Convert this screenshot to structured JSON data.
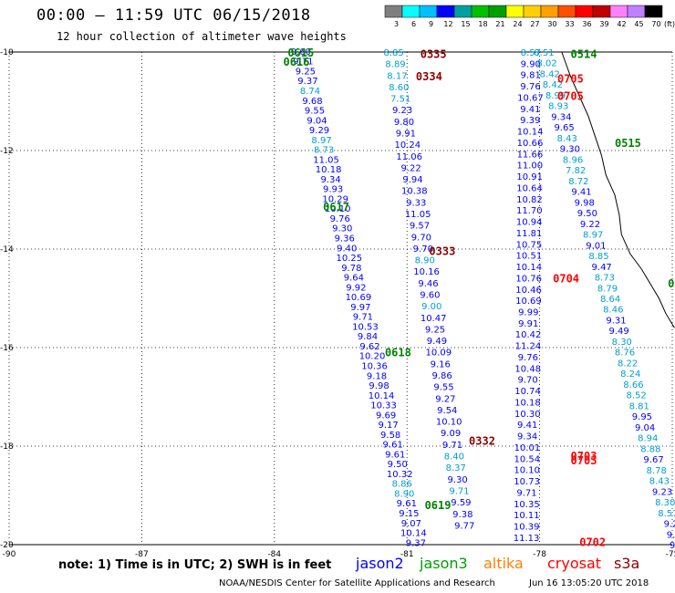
{
  "title": "00:00 – 11:59 UTC 06/15/2018",
  "subtitle": "12 hour collection of altimeter wave heights",
  "note": "note: 1) Time is in UTC; 2) SWH is in feet",
  "footer_left": "NOAA/NESDIS Center for Satellite Applications and Research",
  "footer_right": "Jun 16 13:05:20 UTC 2018",
  "scale": {
    "unit": "(ft)",
    "labels": [
      "3",
      "6",
      "9",
      "12",
      "15",
      "18",
      "21",
      "24",
      "27",
      "30",
      "33",
      "36",
      "39",
      "42",
      "45",
      "70"
    ],
    "colors": [
      "#7f7f7f",
      "#00ffff",
      "#00c0ff",
      "#0000ff",
      "#00a0a0",
      "#00c000",
      "#00a000",
      "#ffff00",
      "#ffd000",
      "#ffa000",
      "#ff5000",
      "#ff0000",
      "#c00000",
      "#ff80ff",
      "#c080ff",
      "#000000"
    ]
  },
  "satellites": [
    {
      "name": "jason2",
      "color": "#0000ff"
    },
    {
      "name": "jason3",
      "color": "#00a000"
    },
    {
      "name": "altika",
      "color": "#ff8000"
    },
    {
      "name": "cryosat",
      "color": "#ff0000"
    },
    {
      "name": "s3a",
      "color": "#8b0000"
    }
  ],
  "axes": {
    "lon_ticks": [
      -90,
      -87,
      -84,
      -81,
      -78,
      -75
    ],
    "lat_ticks": [
      -10,
      -12,
      -14,
      -16,
      -18,
      -20
    ],
    "lon_range": [
      -90,
      -75
    ],
    "lat_range": [
      -20,
      -10
    ]
  },
  "tracks": [
    {
      "id": "A",
      "from": [
        -83.4,
        -9.98
      ],
      "to": [
        -80.8,
        -19.95
      ],
      "values": [
        "9.60",
        "9.71",
        "9.25",
        "9.37",
        "8.74",
        "9.68",
        "9.55",
        "9.04",
        "9.29",
        "8.97",
        "8.73",
        "11.05",
        "10.18",
        "9.34",
        "9.93",
        "10.29",
        "10.10",
        "9.76",
        "9.30",
        "9.36",
        "9.40",
        "10.25",
        "9.78",
        "9.64",
        "9.92",
        "10.69",
        "9.97",
        "9.71",
        "10.53",
        "9.84",
        "9.62",
        "10.20",
        "10.36",
        "9.18",
        "9.98",
        "10.14",
        "10.33",
        "9.69",
        "9.17",
        "9.58",
        "9.61",
        "9.61",
        "9.50",
        "10.32",
        "8.86",
        "8.90",
        "9.61",
        "9.15",
        "9.07",
        "10.14",
        "9.37"
      ],
      "colors": [
        "#0000ff",
        "#0000ff",
        "#0000ff",
        "#0000ff",
        "#00a0d0",
        "#0000ff",
        "#0000ff",
        "#0000ff",
        "#0000ff",
        "#00a0d0",
        "#00a0d0",
        "#0000ff",
        "#0000ff",
        "#0000ff",
        "#0000ff",
        "#0000ff",
        "#0000ff",
        "#0000ff",
        "#0000ff",
        "#0000ff",
        "#0000ff",
        "#0000ff",
        "#0000ff",
        "#0000ff",
        "#0000ff",
        "#0000ff",
        "#0000ff",
        "#0000ff",
        "#0000ff",
        "#0000ff",
        "#0000ff",
        "#0000ff",
        "#0000ff",
        "#0000ff",
        "#0000ff",
        "#0000ff",
        "#0000ff",
        "#0000ff",
        "#0000ff",
        "#0000ff",
        "#0000ff",
        "#0000ff",
        "#0000ff",
        "#0000ff",
        "#00a0d0",
        "#00a0d0",
        "#0000ff",
        "#0000ff",
        "#0000ff",
        "#0000ff",
        "#0000ff"
      ]
    },
    {
      "id": "B",
      "from": [
        -81.3,
        -10.0
      ],
      "to": [
        -79.7,
        -19.6
      ],
      "values": [
        "8.85",
        "8.89",
        "8.17",
        "8.60",
        "7.51",
        "9.23",
        "9.80",
        "9.91",
        "10.24",
        "11.06",
        "9.22",
        "9.94",
        "10.38",
        "9.33",
        "11.05",
        "9.57",
        "9.70",
        "9.70",
        "8.90",
        "10.16",
        "9.46",
        "9.60",
        "9.00",
        "10.47",
        "9.25",
        "9.49",
        "10.09",
        "9.16",
        "9.86",
        "9.55",
        "9.27",
        "9.54",
        "10.10",
        "9.09",
        "9.71",
        "8.40",
        "8.37",
        "9.30",
        "9.71",
        "9.59",
        "9.38",
        "9.77"
      ],
      "colors": [
        "#00a0d0",
        "#00a0d0",
        "#00a0d0",
        "#00a0d0",
        "#00a0d0",
        "#0000ff",
        "#0000ff",
        "#0000ff",
        "#0000ff",
        "#0000ff",
        "#0000ff",
        "#0000ff",
        "#0000ff",
        "#0000ff",
        "#0000ff",
        "#0000ff",
        "#0000ff",
        "#0000ff",
        "#00a0d0",
        "#0000ff",
        "#0000ff",
        "#0000ff",
        "#00a0d0",
        "#0000ff",
        "#0000ff",
        "#0000ff",
        "#0000ff",
        "#0000ff",
        "#0000ff",
        "#0000ff",
        "#0000ff",
        "#0000ff",
        "#0000ff",
        "#0000ff",
        "#0000ff",
        "#00a0d0",
        "#00a0d0",
        "#0000ff",
        "#00a0d0",
        "#0000ff",
        "#0000ff",
        "#0000ff"
      ]
    },
    {
      "id": "C",
      "from": [
        -78.2,
        -10.0
      ],
      "to": [
        -78.3,
        -19.85
      ],
      "values": [
        "8.57",
        "9.90",
        "9.81",
        "9.76",
        "10.67",
        "9.41",
        "9.39",
        "10.14",
        "10.66",
        "11.66",
        "11.00",
        "10.91",
        "10.64",
        "10.82",
        "11.70",
        "10.94",
        "11.81",
        "10.75",
        "10.51",
        "10.14",
        "10.76",
        "10.46",
        "10.69",
        "9.99",
        "9.91",
        "10.42",
        "11.24",
        "9.76",
        "10.48",
        "9.70",
        "10.74",
        "10.18",
        "10.30",
        "9.41",
        "9.34",
        "10.01",
        "10.54",
        "10.10",
        "10.73",
        "9.71",
        "10.35",
        "10.11",
        "10.39",
        "11.13"
      ],
      "colors": [
        "#00a0d0",
        "#0000ff",
        "#0000ff",
        "#0000ff",
        "#0000ff",
        "#0000ff",
        "#0000ff",
        "#0000ff",
        "#0000ff",
        "#0000ff",
        "#0000ff",
        "#0000ff",
        "#0000ff",
        "#0000ff",
        "#0000ff",
        "#0000ff",
        "#0000ff",
        "#0000ff",
        "#0000ff",
        "#0000ff",
        "#0000ff",
        "#0000ff",
        "#0000ff",
        "#0000ff",
        "#0000ff",
        "#0000ff",
        "#0000ff",
        "#0000ff",
        "#0000ff",
        "#0000ff",
        "#0000ff",
        "#0000ff",
        "#0000ff",
        "#0000ff",
        "#0000ff",
        "#0000ff",
        "#0000ff",
        "#0000ff",
        "#0000ff",
        "#0000ff",
        "#0000ff",
        "#0000ff",
        "#0000ff",
        "#0000ff"
      ]
    },
    {
      "id": "D",
      "from": [
        -77.9,
        -10.0
      ],
      "to": [
        -74.9,
        -20.0
      ],
      "values": [
        "8.51",
        "8.02",
        "8.42",
        "8.42",
        "8.99",
        "8.93",
        "9.34",
        "9.65",
        "8.43",
        "9.30",
        "8.96",
        "7.82",
        "8.72",
        "9.41",
        "9.98",
        "9.50",
        "9.22",
        "8.97",
        "9.01",
        "8.85",
        "9.47",
        "8.73",
        "8.79",
        "8.64",
        "8.46",
        "9.31",
        "9.49",
        "8.30",
        "8.76",
        "8.22",
        "8.24",
        "8.66",
        "8.52",
        "8.81",
        "9.95",
        "9.04",
        "8.94",
        "8.88",
        "9.67",
        "8.78",
        "8.43",
        "9.23",
        "8.30",
        "8.57",
        "9.2",
        "9.2",
        "9.5"
      ],
      "colors": [
        "#00a0d0",
        "#00a0d0",
        "#00a0d0",
        "#00a0d0",
        "#00a0d0",
        "#00a0d0",
        "#0000ff",
        "#0000ff",
        "#00a0d0",
        "#0000ff",
        "#00a0d0",
        "#00a0d0",
        "#00a0d0",
        "#0000ff",
        "#0000ff",
        "#0000ff",
        "#0000ff",
        "#00a0d0",
        "#0000ff",
        "#00a0d0",
        "#0000ff",
        "#00a0d0",
        "#00a0d0",
        "#00a0d0",
        "#00a0d0",
        "#0000ff",
        "#0000ff",
        "#00a0d0",
        "#00a0d0",
        "#00a0d0",
        "#00a0d0",
        "#00a0d0",
        "#00a0d0",
        "#00a0d0",
        "#0000ff",
        "#0000ff",
        "#00a0d0",
        "#00a0d0",
        "#0000ff",
        "#00a0d0",
        "#00a0d0",
        "#0000ff",
        "#00a0d0",
        "#00a0d0",
        "#0000ff",
        "#0000ff",
        "#0000ff"
      ]
    }
  ],
  "time_labels": [
    {
      "text": "0615",
      "lon": -83.7,
      "lat": -10.02,
      "color": "#008000"
    },
    {
      "text": "0616",
      "lon": -83.8,
      "lat": -10.2,
      "color": "#008000"
    },
    {
      "text": "0617",
      "lon": -82.9,
      "lat": -13.15,
      "color": "#008000"
    },
    {
      "text": "0618",
      "lon": -81.5,
      "lat": -16.1,
      "color": "#008000"
    },
    {
      "text": "0619",
      "lon": -80.6,
      "lat": -19.2,
      "color": "#008000"
    },
    {
      "text": "0335",
      "lon": -80.7,
      "lat": -10.05,
      "color": "#8b0000"
    },
    {
      "text": "0334",
      "lon": -80.8,
      "lat": -10.5,
      "color": "#8b0000"
    },
    {
      "text": "0333",
      "lon": -80.5,
      "lat": -14.05,
      "color": "#8b0000"
    },
    {
      "text": "0332",
      "lon": -79.6,
      "lat": -17.9,
      "color": "#8b0000"
    },
    {
      "text": "0514",
      "lon": -77.3,
      "lat": -10.05,
      "color": "#008000"
    },
    {
      "text": "0515",
      "lon": -76.3,
      "lat": -11.85,
      "color": "#008000"
    },
    {
      "text": "0516",
      "lon": -75.1,
      "lat": -14.7,
      "color": "#008000"
    },
    {
      "text": "0705",
      "lon": -77.6,
      "lat": -10.55,
      "color": "#ff0000"
    },
    {
      "text": "0705",
      "lon": -77.6,
      "lat": -10.9,
      "color": "#ff0000"
    },
    {
      "text": "0704",
      "lon": -77.7,
      "lat": -14.6,
      "color": "#ff0000"
    },
    {
      "text": "0703",
      "lon": -77.3,
      "lat": -18.2,
      "color": "#ff0000"
    },
    {
      "text": "0703",
      "lon": -77.3,
      "lat": -18.3,
      "color": "#ff0000"
    },
    {
      "text": "0702",
      "lon": -77.1,
      "lat": -19.95,
      "color": "#ff0000"
    }
  ],
  "coastline": [
    [
      -77.5,
      -10.0
    ],
    [
      -77.3,
      -10.5
    ],
    [
      -77.1,
      -10.9
    ],
    [
      -76.9,
      -11.3
    ],
    [
      -76.75,
      -11.7
    ],
    [
      -76.6,
      -12.1
    ],
    [
      -76.5,
      -12.5
    ],
    [
      -76.3,
      -12.9
    ],
    [
      -76.2,
      -13.3
    ],
    [
      -76.15,
      -13.7
    ],
    [
      -75.95,
      -14.1
    ],
    [
      -75.7,
      -14.4
    ],
    [
      -75.5,
      -14.7
    ],
    [
      -75.3,
      -15.0
    ],
    [
      -75.15,
      -15.3
    ],
    [
      -74.95,
      -15.6
    ]
  ]
}
